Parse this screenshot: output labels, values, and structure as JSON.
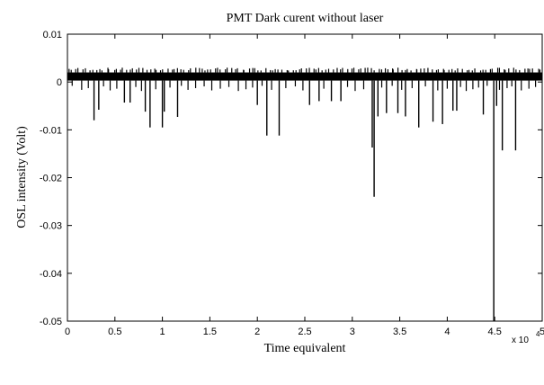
{
  "chart_data": {
    "type": "line",
    "title": "PMT Dark curent without laser",
    "xlabel": "Time equivalent",
    "ylabel": "OSL intensity (Volt)",
    "x_multiplier": "x 10",
    "x_multiplier_exp": "4",
    "xlim": [
      0,
      5
    ],
    "ylim": [
      -0.05,
      0.01
    ],
    "xticks": [
      0,
      0.5,
      1,
      1.5,
      2,
      2.5,
      3,
      3.5,
      4,
      4.5,
      5
    ],
    "xtick_labels": [
      "0",
      "0.5",
      "1",
      "1.5",
      "2",
      "2.5",
      "3",
      "3.5",
      "4",
      "4.5",
      "5"
    ],
    "yticks": [
      0.01,
      0,
      -0.01,
      -0.02,
      -0.03,
      -0.04,
      -0.05
    ],
    "ytick_labels": [
      "0.01",
      "0",
      "-0.01",
      "-0.02",
      "-0.03",
      "-0.04",
      "-0.05"
    ],
    "grid": false,
    "legend": "none",
    "line_color": "#000000",
    "baseline_band": [
      0.0003,
      0.002
    ],
    "spikes": [
      {
        "x": 0.28,
        "y": -0.008
      },
      {
        "x": 0.33,
        "y": -0.0058
      },
      {
        "x": 0.6,
        "y": -0.0043
      },
      {
        "x": 0.66,
        "y": -0.0043
      },
      {
        "x": 0.82,
        "y": -0.0062
      },
      {
        "x": 0.87,
        "y": -0.0095
      },
      {
        "x": 1.0,
        "y": -0.0095
      },
      {
        "x": 1.02,
        "y": -0.0062
      },
      {
        "x": 1.16,
        "y": -0.0073
      },
      {
        "x": 2.0,
        "y": -0.0048
      },
      {
        "x": 2.1,
        "y": -0.0112
      },
      {
        "x": 2.23,
        "y": -0.0112
      },
      {
        "x": 2.55,
        "y": -0.0048
      },
      {
        "x": 2.65,
        "y": -0.004
      },
      {
        "x": 2.78,
        "y": -0.004
      },
      {
        "x": 2.88,
        "y": -0.004
      },
      {
        "x": 3.21,
        "y": -0.0137
      },
      {
        "x": 3.23,
        "y": -0.024
      },
      {
        "x": 3.27,
        "y": -0.0072
      },
      {
        "x": 3.36,
        "y": -0.0065
      },
      {
        "x": 3.48,
        "y": -0.0065
      },
      {
        "x": 3.56,
        "y": -0.0072
      },
      {
        "x": 3.7,
        "y": -0.0095
      },
      {
        "x": 3.85,
        "y": -0.0083
      },
      {
        "x": 3.95,
        "y": -0.0088
      },
      {
        "x": 4.06,
        "y": -0.006
      },
      {
        "x": 4.1,
        "y": -0.006
      },
      {
        "x": 4.38,
        "y": -0.0068
      },
      {
        "x": 4.49,
        "y": -0.05
      },
      {
        "x": 4.52,
        "y": -0.005
      },
      {
        "x": 4.58,
        "y": -0.0143
      },
      {
        "x": 4.72,
        "y": -0.0143
      }
    ],
    "small_dips": [
      0.05,
      0.15,
      0.22,
      0.38,
      0.45,
      0.52,
      0.72,
      0.78,
      0.93,
      1.08,
      1.2,
      1.27,
      1.35,
      1.44,
      1.52,
      1.61,
      1.7,
      1.8,
      1.88,
      1.95,
      2.05,
      2.15,
      2.3,
      2.4,
      2.48,
      2.7,
      2.95,
      3.03,
      3.12,
      3.31,
      3.42,
      3.52,
      3.63,
      3.77,
      3.9,
      4.0,
      4.14,
      4.2,
      4.27,
      4.33,
      4.42,
      4.55,
      4.63,
      4.68,
      4.78,
      4.86,
      4.93
    ]
  }
}
